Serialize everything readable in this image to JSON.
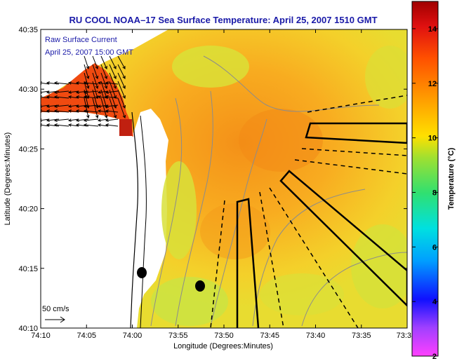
{
  "chart_data": {
    "type": "heatmap",
    "title": "RU COOL  NOAA–17  Sea Surface Temperature:  April 25, 2007 1510 GMT",
    "xlabel": "Longitude (Degrees:Minutes)",
    "ylabel": "Latitude (Degrees:Minutes)",
    "x_ticks": [
      "74:10",
      "74:05",
      "74:00",
      "73:55",
      "73:50",
      "73:45",
      "73:40",
      "73:35",
      "73:3"
    ],
    "y_ticks": [
      "40:10",
      "40:15",
      "40:20",
      "40:25",
      "40:30",
      "40:35"
    ],
    "xlim_minutes_west": [
      10,
      30
    ],
    "ylim_minutes_north": [
      10,
      35
    ],
    "colorbar": {
      "label": "Temperature (°C)",
      "range": [
        2,
        15
      ],
      "ticks": [
        2,
        4,
        6,
        8,
        10,
        12,
        14
      ]
    },
    "annotations": {
      "current_label": "Raw Surface Current",
      "current_time": "April 25, 2007 15:00 GMT",
      "scale_label": "50 cm/s"
    },
    "colors": {
      "title": "#1a1aa8",
      "annotation": "#1a1aa8",
      "land": "#ffffff",
      "water_warm": "#f29a1c",
      "water_cool": "#c8e640"
    }
  }
}
